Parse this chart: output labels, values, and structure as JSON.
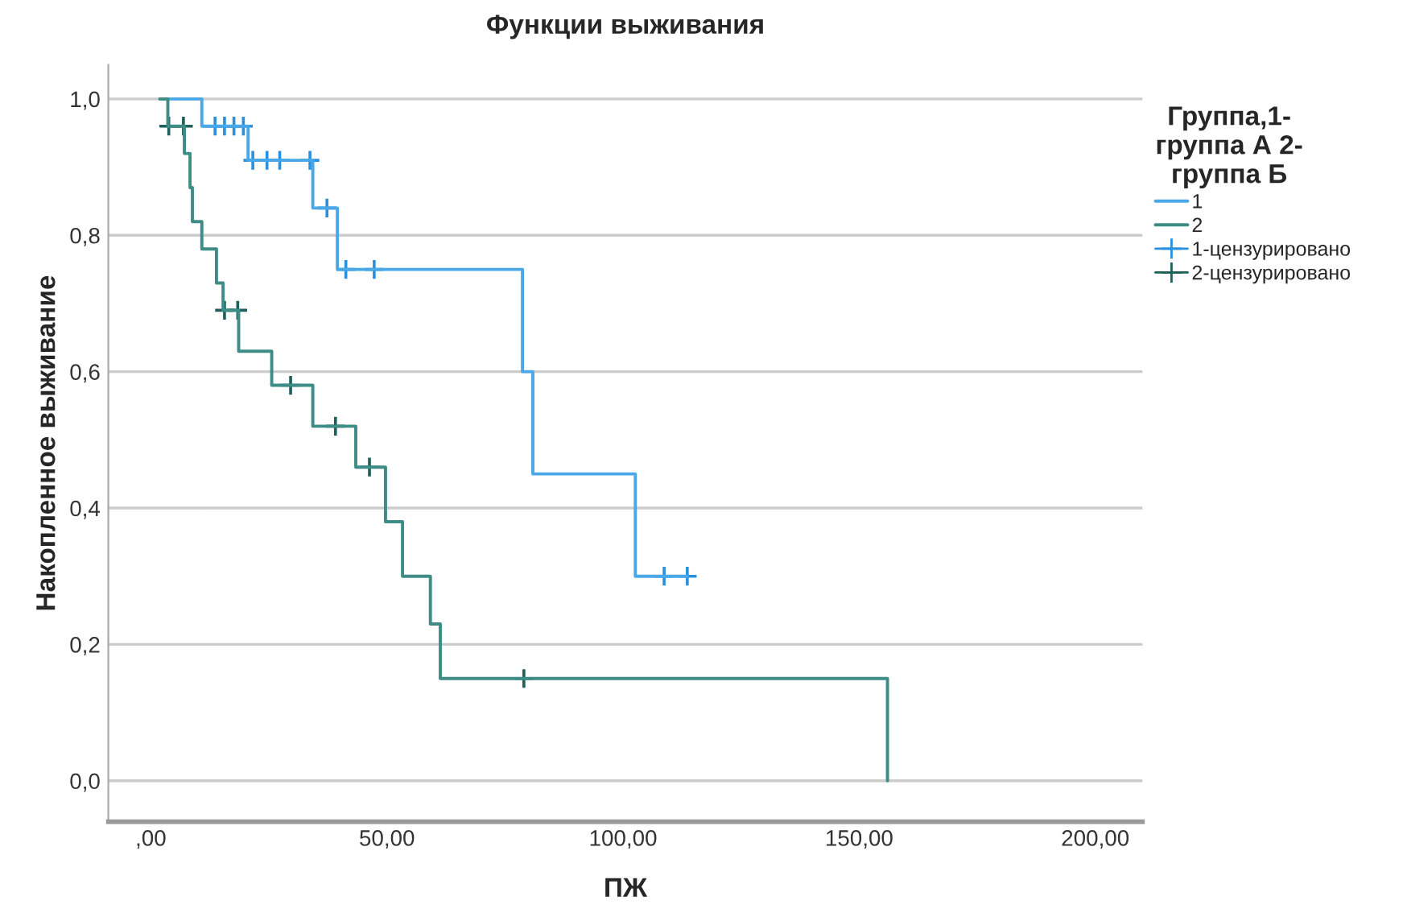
{
  "chart_data": {
    "type": "step",
    "title": "Функции выживания",
    "xlabel": "ПЖ",
    "ylabel": "Накопленное выживание",
    "legend_title": "Группа,1-\nгруппа А 2-\nгруппа Б",
    "series": [
      {
        "name": "1",
        "color": "#4aa8e8",
        "x": [
          1.9,
          10.8,
          20.6,
          34.3,
          39.5,
          78.7,
          80.9,
          102.6,
          113.6
        ],
        "values": [
          1.0,
          0.96,
          0.91,
          0.84,
          0.75,
          0.6,
          0.45,
          0.3,
          0.3
        ]
      },
      {
        "name": "2",
        "color": "#3d8c86",
        "x": [
          1.9,
          3.6,
          7.1,
          8.3,
          8.8,
          10.8,
          13.9,
          15.3,
          18.6,
          25.6,
          34.3,
          43.4,
          49.7,
          53.3,
          59.2,
          61.3,
          156
        ],
        "values": [
          1.0,
          0.96,
          0.92,
          0.87,
          0.82,
          0.78,
          0.73,
          0.69,
          0.63,
          0.58,
          0.52,
          0.46,
          0.38,
          0.3,
          0.23,
          0.15,
          0.0
        ]
      },
      {
        "name": "1-цензурировано",
        "type": "scatter",
        "marker": "cross",
        "color": "#2a8fdc",
        "x": [
          13.6,
          15.6,
          17.6,
          19.6,
          21.6,
          24.6,
          27.3,
          33.7,
          37.3,
          41.3,
          47.3,
          108.7,
          113.6
        ],
        "values": [
          0.96,
          0.96,
          0.96,
          0.96,
          0.91,
          0.91,
          0.91,
          0.91,
          0.84,
          0.75,
          0.75,
          0.3,
          0.3
        ]
      },
      {
        "name": "2-цензурировано",
        "type": "scatter",
        "marker": "cross",
        "color": "#1d5f5a",
        "x": [
          3.8,
          6.9,
          15.6,
          18.4,
          29.6,
          39.1,
          46.3,
          79
        ],
        "values": [
          0.96,
          0.96,
          0.69,
          0.69,
          0.58,
          0.52,
          0.46,
          0.15
        ]
      }
    ],
    "xlim": [
      -9,
      210
    ],
    "xticks": [
      {
        "value": 0,
        "label": ",00"
      },
      {
        "value": 50,
        "label": "50,00"
      },
      {
        "value": 100,
        "label": "100,00"
      },
      {
        "value": 150,
        "label": "150,00"
      },
      {
        "value": 200,
        "label": "200,00"
      }
    ],
    "ylim": [
      -0.06,
      1.05
    ],
    "yticks": [
      {
        "value": 0,
        "label": "0,0"
      },
      {
        "value": 0.2,
        "label": "0,2"
      },
      {
        "value": 0.4,
        "label": "0,4"
      },
      {
        "value": 0.6,
        "label": "0,6"
      },
      {
        "value": 0.8,
        "label": "0,8"
      },
      {
        "value": 1.0,
        "label": "1,0"
      }
    ],
    "grid": "y",
    "legend": "right"
  }
}
